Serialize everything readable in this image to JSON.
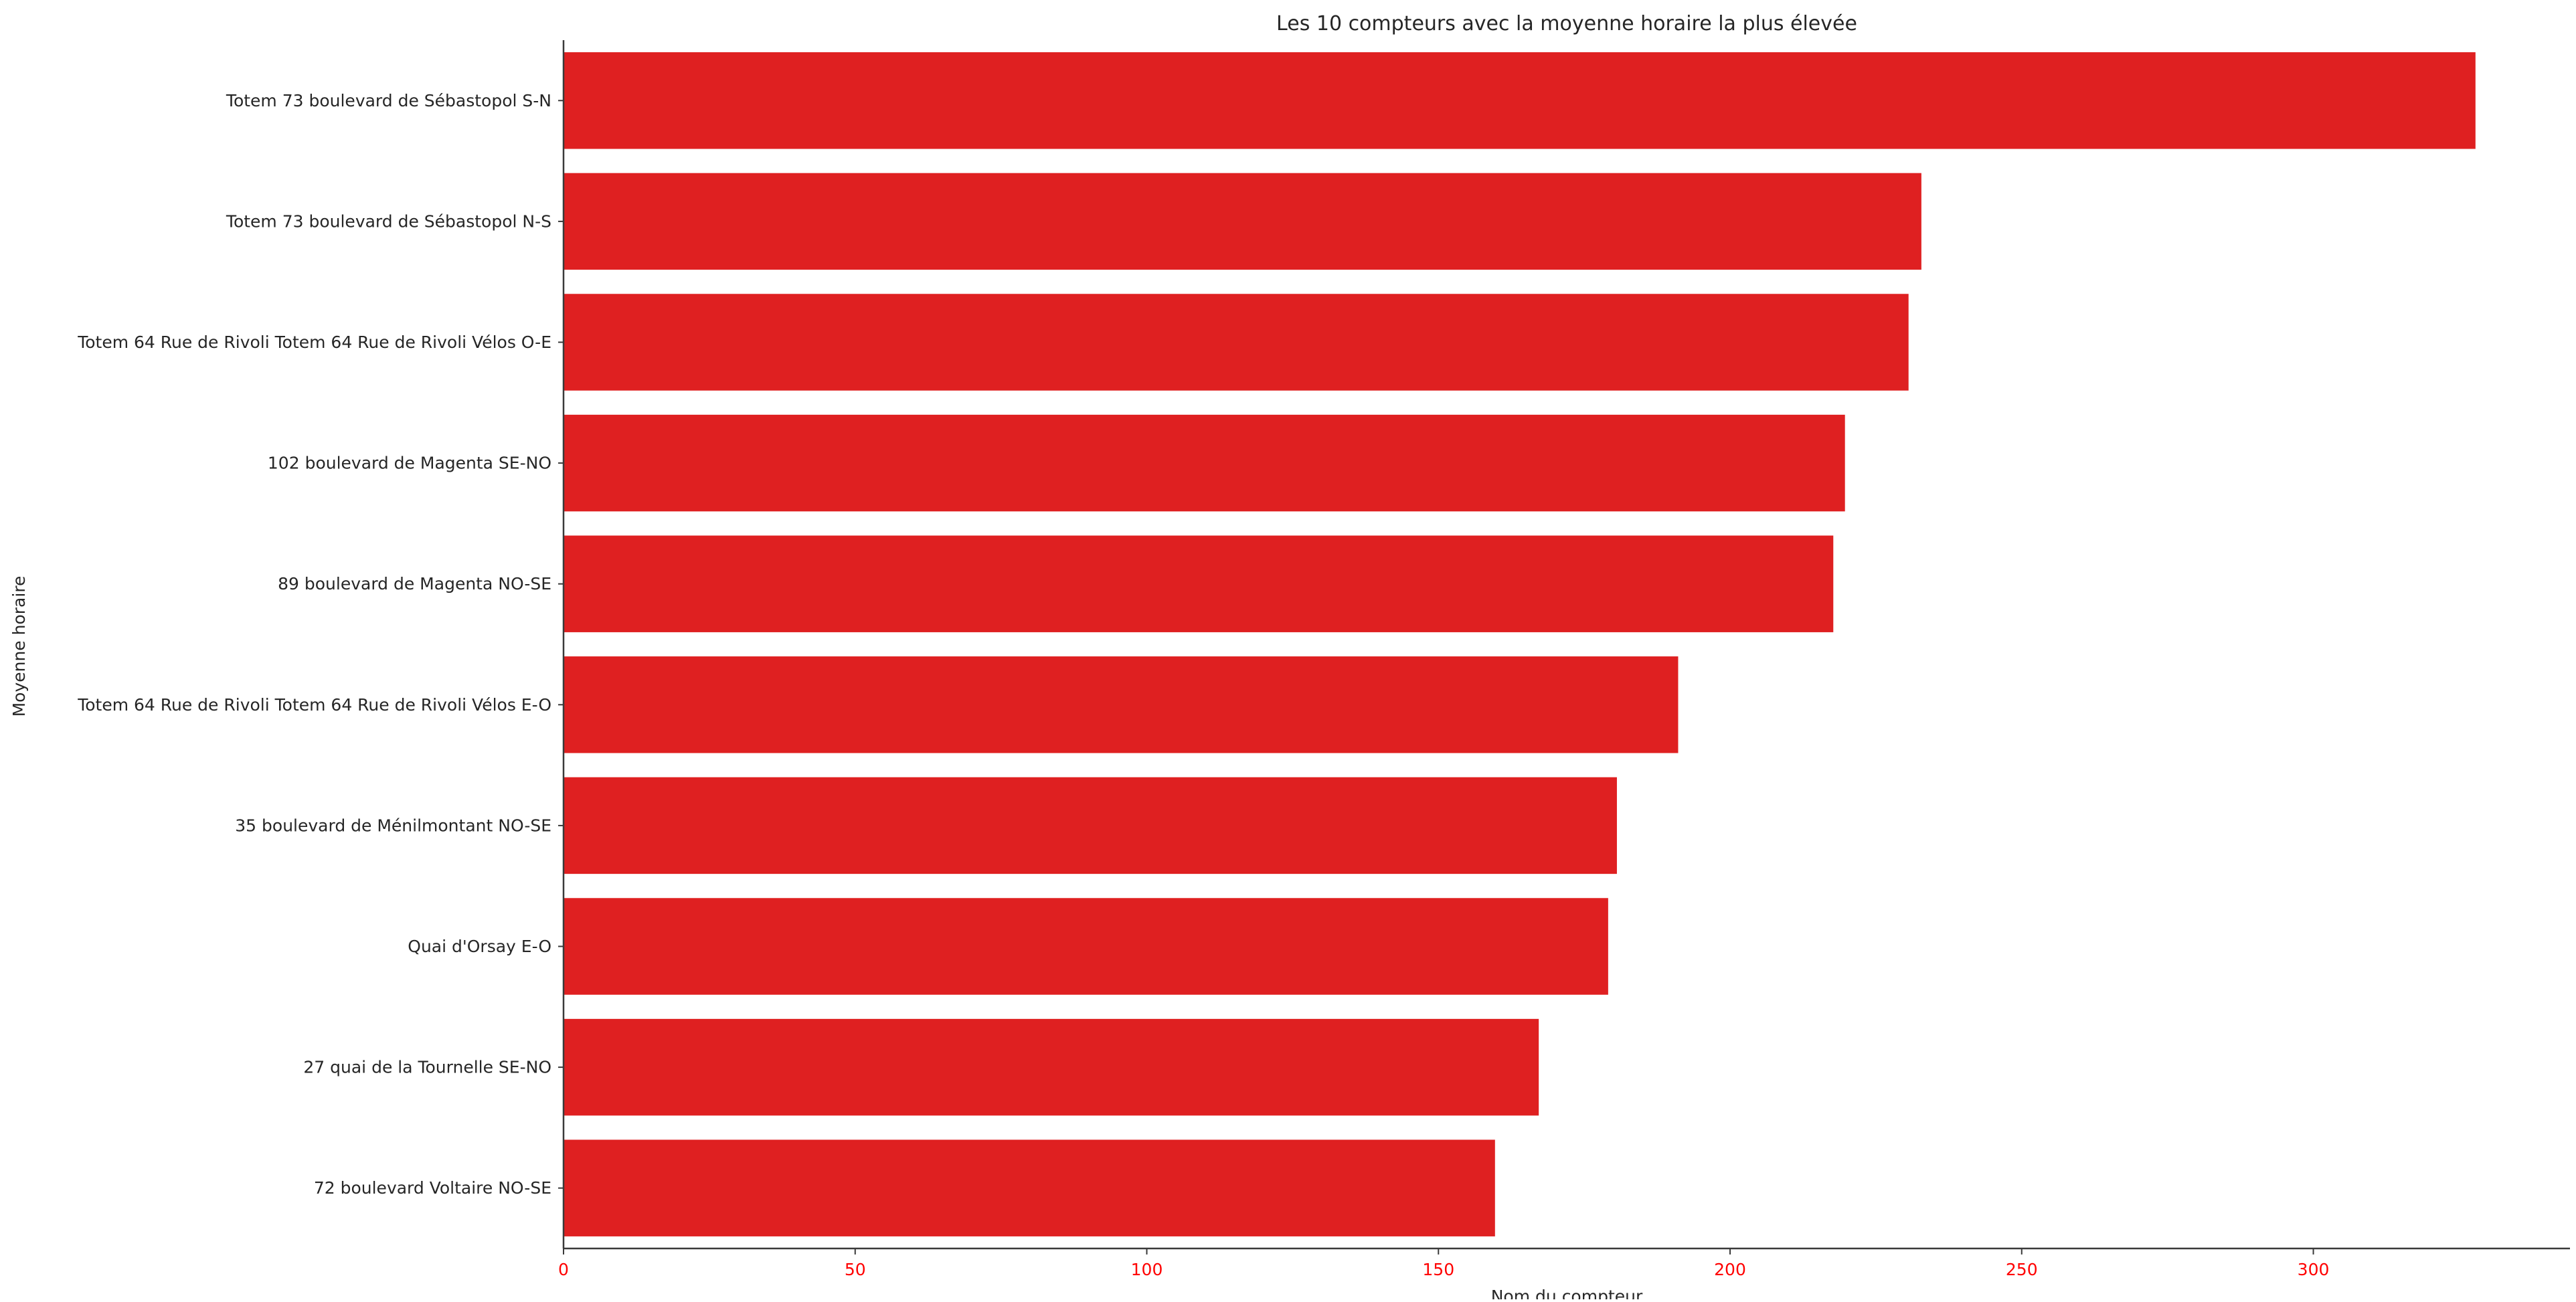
{
  "chart_data": {
    "type": "bar",
    "orientation": "horizontal",
    "title": "Les 10 compteurs avec la moyenne horaire la plus élevée",
    "xlabel": "Nom du compteur",
    "ylabel": "Moyenne horaire",
    "categories": [
      "Totem 73 boulevard de Sébastopol S-N",
      "Totem 73 boulevard de Sébastopol N-S",
      "Totem 64 Rue de Rivoli Totem 64 Rue de Rivoli Vélos O-E",
      "102 boulevard de Magenta SE-NO",
      "89 boulevard de Magenta NO-SE",
      "Totem 64 Rue de Rivoli Totem 64 Rue de Rivoli Vélos E-O",
      "35 boulevard de Ménilmontant NO-SE",
      "Quai d'Orsay E-O",
      "27 quai de la Tournelle SE-NO",
      "72 boulevard Voltaire NO-SE"
    ],
    "values": [
      327.8,
      232.8,
      230.6,
      219.7,
      217.7,
      191.1,
      180.6,
      179.1,
      167.2,
      159.7
    ],
    "xlim": [
      0,
      344
    ],
    "xticks": [
      0,
      50,
      100,
      150,
      200,
      250,
      300
    ],
    "grid": false,
    "legend": "none",
    "colors": {
      "bar": "#df2021",
      "tick_label": "#ff0000",
      "text": "#262626",
      "axis": "#3a3a3a"
    }
  }
}
